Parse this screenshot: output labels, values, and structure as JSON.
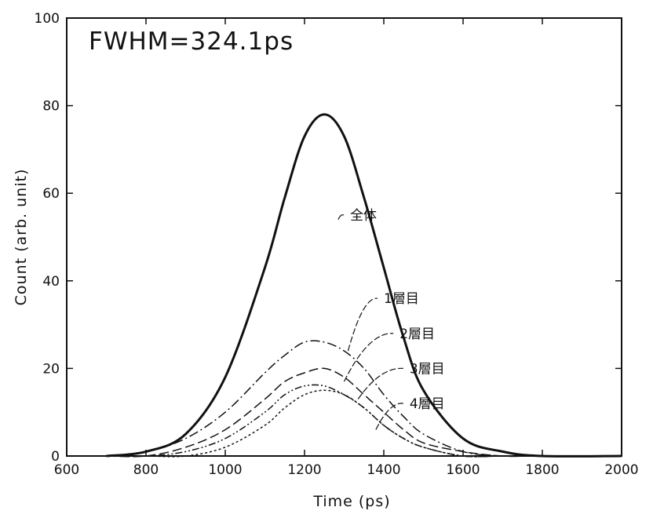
{
  "chart_data": {
    "type": "line",
    "title": "",
    "annotation": "FWHM=324.1ps",
    "xlabel": "Time (ps)",
    "ylabel": "Count (arb. unit)",
    "xlim": [
      600,
      2000
    ],
    "ylim": [
      0,
      100
    ],
    "xticks": [
      600,
      800,
      1000,
      1200,
      1400,
      1600,
      1800,
      2000
    ],
    "yticks": [
      0,
      20,
      40,
      60,
      80,
      100
    ],
    "grid": false,
    "legend": "none",
    "x": [
      700,
      800,
      900,
      1000,
      1100,
      1150,
      1200,
      1250,
      1300,
      1350,
      1400,
      1450,
      1500,
      1600,
      1700,
      1800,
      2000
    ],
    "series": [
      {
        "name": "全体",
        "style": "solid-bold",
        "values": [
          0,
          1,
          5,
          18,
          43,
          59,
          73,
          78,
          73,
          59,
          43,
          27,
          15,
          4,
          1,
          0,
          0
        ]
      },
      {
        "name": "1層目",
        "style": "dash-dot",
        "values": [
          0,
          1,
          4,
          10,
          19,
          23,
          26,
          26,
          24,
          20,
          14,
          9,
          5,
          1,
          0,
          0,
          0
        ]
      },
      {
        "name": "2層目",
        "style": "dashed",
        "values": [
          0,
          0,
          2,
          6,
          13,
          17,
          19,
          20,
          18,
          14,
          10,
          6,
          3,
          1,
          0,
          0,
          0
        ]
      },
      {
        "name": "3層目",
        "style": "dash-dot-dot",
        "values": [
          0,
          0,
          1,
          4,
          10,
          14,
          16,
          16,
          14,
          11,
          7,
          4,
          2,
          0,
          0,
          0,
          0
        ]
      },
      {
        "name": "4層目",
        "style": "dotted",
        "values": [
          0,
          0,
          0,
          2,
          7,
          11,
          14,
          15,
          14,
          11,
          7,
          4,
          2,
          0,
          0,
          0,
          0
        ]
      }
    ]
  }
}
